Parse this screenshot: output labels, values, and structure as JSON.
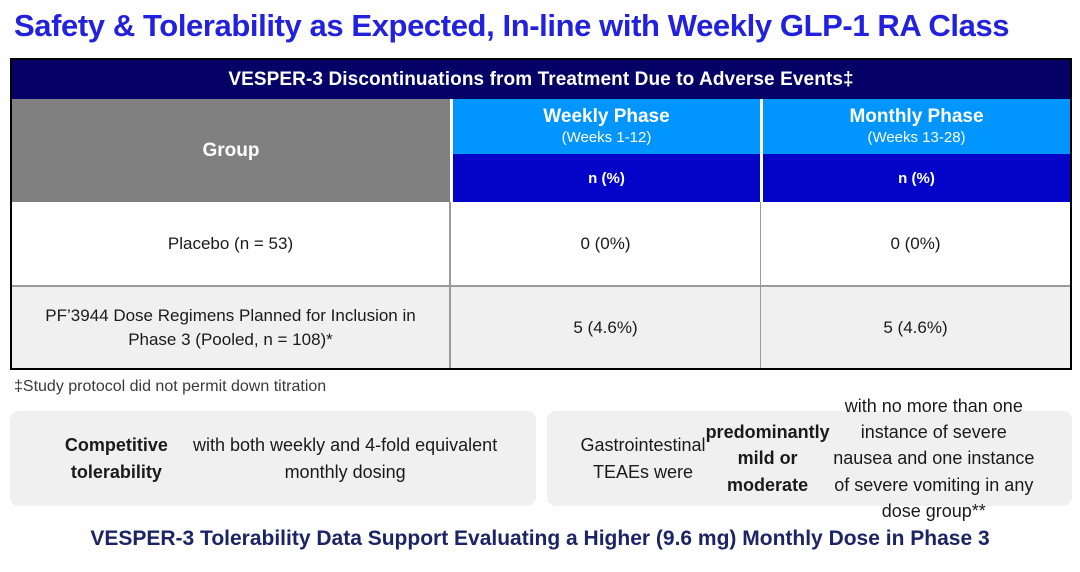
{
  "page": {
    "title": "Safety & Tolerability as Expected, In-line with Weekly GLP-1 RA Class",
    "bottom_statement": "VESPER-3 Tolerability Data Support Evaluating a Higher (9.6 mg) Monthly Dose in Phase 3"
  },
  "table": {
    "title": "VESPER-3 Discontinuations from Treatment Due to Adverse Events‡",
    "columns": {
      "group_header": "Group",
      "weekly": {
        "label": "Weekly Phase",
        "sublabel": "(Weeks 1-12)",
        "unit": "n (%)"
      },
      "monthly": {
        "label": "Monthly Phase",
        "sublabel": "(Weeks 13-28)",
        "unit": "n (%)"
      }
    },
    "rows": [
      {
        "group": "Placebo (n = 53)",
        "weekly": "0 (0%)",
        "monthly": "0 (0%)"
      },
      {
        "group": "PF’3944 Dose Regimens Planned for Inclusion in Phase 3 (Pooled, n = 108)*",
        "weekly": "5 (4.6%)",
        "monthly": "5 (4.6%)"
      }
    ],
    "footnote": "‡Study protocol did not permit down titration"
  },
  "callouts": {
    "left": {
      "segments": [
        {
          "text": "Competitive tolerability",
          "bold": true
        },
        {
          "text": " with both weekly and 4-fold equivalent monthly dosing",
          "bold": false
        }
      ]
    },
    "right": {
      "segments": [
        {
          "text": "Gastrointestinal TEAEs were ",
          "bold": false
        },
        {
          "text": "predominantly mild or moderate",
          "bold": true
        },
        {
          "text": " with no more than one instance of severe nausea and one instance of severe vomiting in any dose group**",
          "bold": false
        }
      ]
    }
  },
  "colors": {
    "title_blue": "#2222DE",
    "navy": "#050065",
    "azure": "#0095FF",
    "deep_blue": "#0404C8",
    "gray_header": "#808080",
    "row_alt": "#F0F0F0",
    "callout_bg": "#F0F0F0",
    "statement_navy": "#1B2566"
  }
}
